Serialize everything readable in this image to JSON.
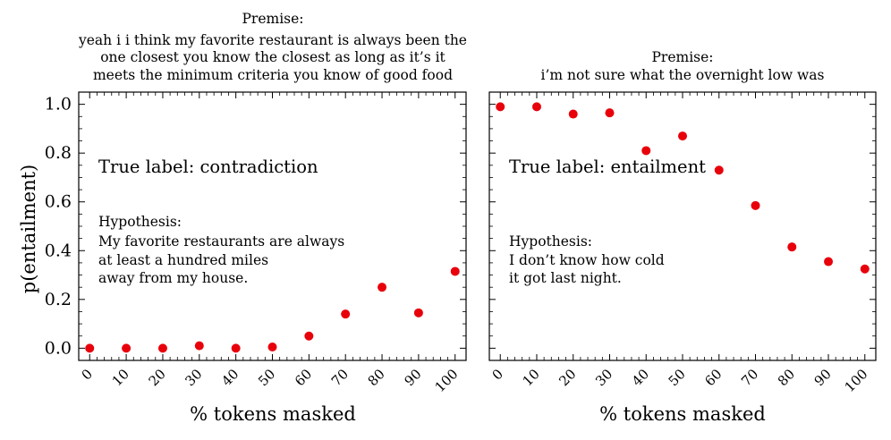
{
  "figure": {
    "ylabel": "p(entailment)",
    "xlabel": "% tokens masked",
    "marker_color": "#e8000b"
  },
  "chart_data": [
    {
      "type": "scatter",
      "title_lines": [
        "Premise:",
        "yeah i i think my favorite restaurant is always been the",
        "one closest you know the closest as long as it’s it",
        "meets the minimum criteria you know of good food"
      ],
      "xlabel": "% tokens masked",
      "ylabel": "p(entailment)",
      "x": [
        0,
        10,
        20,
        30,
        40,
        50,
        60,
        70,
        80,
        90,
        100
      ],
      "y": [
        0.0,
        0.0,
        0.0,
        0.01,
        0.0,
        0.005,
        0.05,
        0.14,
        0.25,
        0.145,
        0.315
      ],
      "xlim": [
        -3,
        103
      ],
      "ylim": [
        -0.05,
        1.05
      ],
      "xticks": [
        "0",
        "10",
        "20",
        "30",
        "40",
        "50",
        "60",
        "70",
        "80",
        "90",
        "100"
      ],
      "yticks": [
        "0.0",
        "0.2",
        "0.4",
        "0.6",
        "0.8",
        "1.0"
      ],
      "annotations": {
        "label_text": "True label: contradiction",
        "hypothesis_lines": [
          "Hypothesis:",
          "My favorite restaurants are always",
          "at least a hundred miles",
          "away from my house."
        ]
      }
    },
    {
      "type": "scatter",
      "title_lines": [
        "Premise:",
        "i’m not sure what the overnight low was"
      ],
      "xlabel": "% tokens masked",
      "x": [
        0,
        10,
        20,
        30,
        40,
        50,
        60,
        70,
        80,
        90,
        100
      ],
      "y": [
        0.99,
        0.99,
        0.96,
        0.965,
        0.81,
        0.87,
        0.73,
        0.585,
        0.415,
        0.355,
        0.325
      ],
      "xlim": [
        -3,
        103
      ],
      "ylim": [
        -0.05,
        1.05
      ],
      "xticks": [
        "0",
        "10",
        "20",
        "30",
        "40",
        "50",
        "60",
        "70",
        "80",
        "90",
        "100"
      ],
      "yticks": [
        "0.0",
        "0.2",
        "0.4",
        "0.6",
        "0.8",
        "1.0"
      ],
      "annotations": {
        "label_text": "True label: entailment",
        "hypothesis_lines": [
          "Hypothesis:",
          "I don’t know how cold",
          "it got last night."
        ]
      }
    }
  ]
}
